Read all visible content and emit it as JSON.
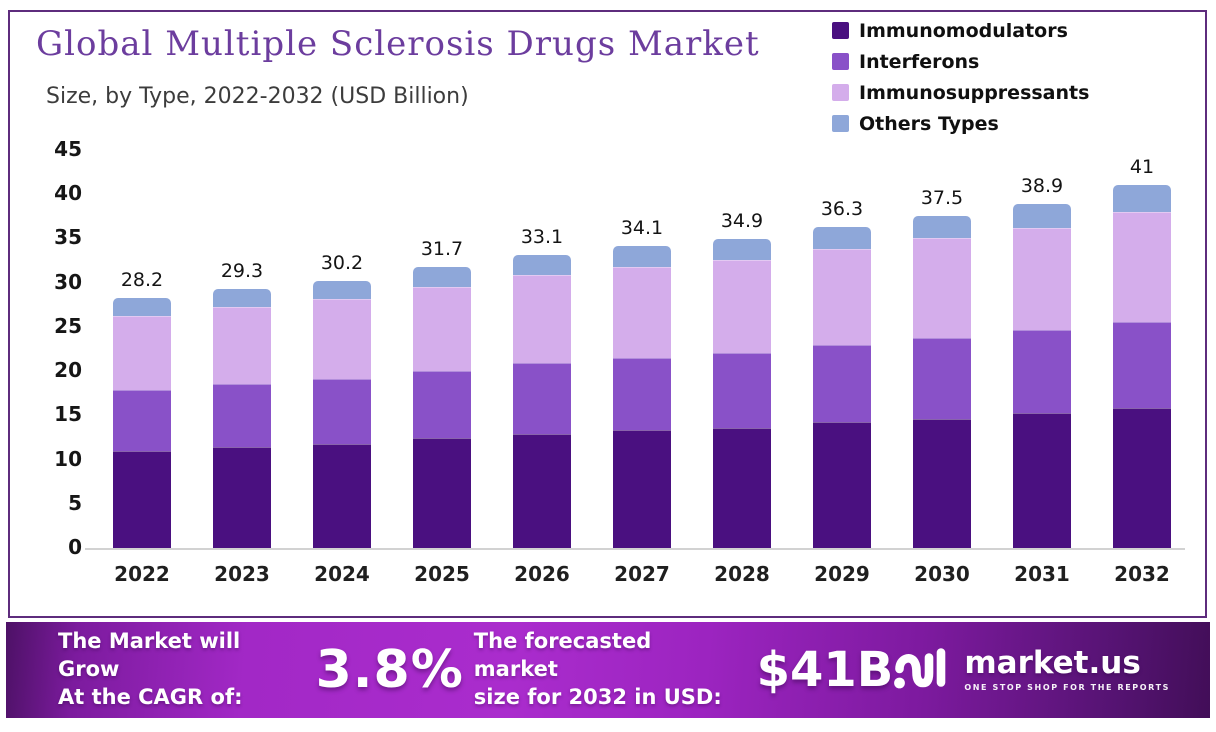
{
  "title": "Global Multiple Sclerosis Drugs Market",
  "subtitle": "Size, by Type, 2022-2032 (USD Billion)",
  "legend": [
    {
      "label": "Immunomodulators",
      "color": "#4a1080"
    },
    {
      "label": "Interferons",
      "color": "#8951c8"
    },
    {
      "label": "Immunosuppressants",
      "color": "#d4adeb"
    },
    {
      "label": "Others Types",
      "color": "#8ea7d9"
    }
  ],
  "chart_data": {
    "type": "bar",
    "stacked": true,
    "title": "Global Multiple Sclerosis Drugs Market Size, by Type, 2022-2032 (USD Billion)",
    "categories": [
      "2022",
      "2023",
      "2024",
      "2025",
      "2026",
      "2027",
      "2028",
      "2029",
      "2030",
      "2031",
      "2032"
    ],
    "series": [
      {
        "name": "Immunomodulators",
        "color": "#4a1080",
        "values": [
          11.0,
          11.4,
          11.8,
          12.4,
          12.9,
          13.3,
          13.6,
          14.2,
          14.6,
          15.2,
          15.8
        ]
      },
      {
        "name": "Interferons",
        "color": "#8951c8",
        "values": [
          6.9,
          7.1,
          7.3,
          7.6,
          8.0,
          8.2,
          8.4,
          8.7,
          9.1,
          9.4,
          9.7
        ]
      },
      {
        "name": "Immunosuppressants",
        "color": "#d4adeb",
        "values": [
          8.3,
          8.7,
          9.0,
          9.5,
          10.0,
          10.3,
          10.5,
          10.9,
          11.3,
          11.6,
          12.5
        ]
      },
      {
        "name": "Others Types",
        "color": "#8ea7d9",
        "values": [
          2.0,
          2.1,
          2.1,
          2.2,
          2.2,
          2.3,
          2.4,
          2.5,
          2.5,
          2.7,
          3.0
        ]
      }
    ],
    "totals": [
      28.2,
      29.3,
      30.2,
      31.7,
      33.1,
      34.1,
      34.9,
      36.3,
      37.5,
      38.9,
      41
    ],
    "total_labels": [
      "28.2",
      "29.3",
      "30.2",
      "31.7",
      "33.1",
      "34.1",
      "34.9",
      "36.3",
      "37.5",
      "38.9",
      "41"
    ],
    "xlabel": "",
    "ylabel": "",
    "ylim": [
      0,
      45
    ],
    "yticks": [
      0,
      5,
      10,
      15,
      20,
      25,
      30,
      35,
      40,
      45
    ],
    "grid": false,
    "legend_position": "top-right"
  },
  "banner": {
    "cagr_label_line1": "The Market will Grow",
    "cagr_label_line2": "At the CAGR of:",
    "cagr_value": "3.8%",
    "forecast_label_line1": "The forecasted market",
    "forecast_label_line2": "size for 2032 in USD:",
    "forecast_value": "$41B",
    "brand": "market.us",
    "brand_tagline": "ONE STOP SHOP FOR THE REPORTS"
  },
  "colors": {
    "frame_border": "#5e2c7d",
    "title_text": "#6c3d9e",
    "banner_center": "#aa2ccd",
    "banner_edge": "#420e58",
    "axis_line": "#d2d2d2"
  }
}
